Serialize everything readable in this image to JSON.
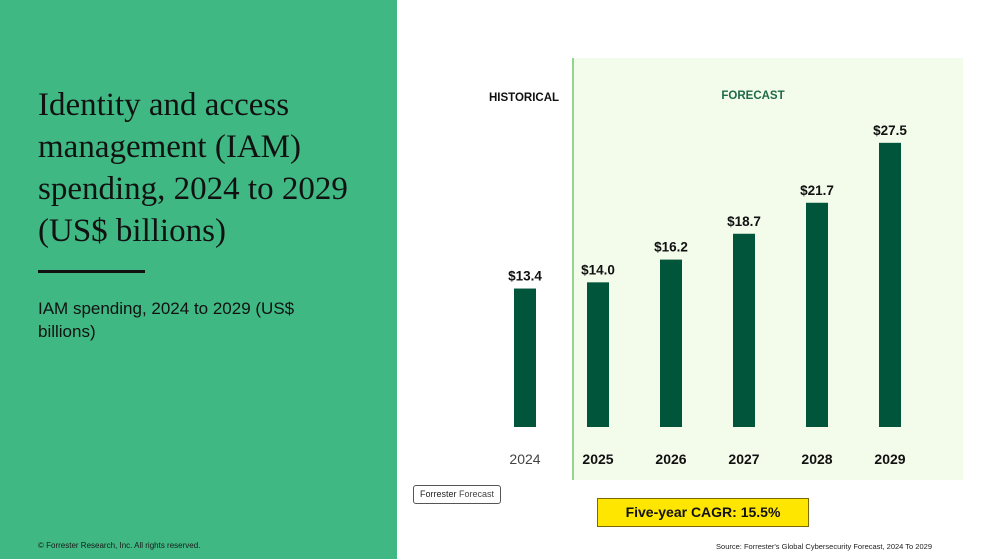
{
  "slide": {
    "title": "Identity and access management (IAM) spending, 2024 to 2029 (US$ billions)",
    "subtitle": "IAM spending, 2024 to 2029 (US$ billions)",
    "copyright": "© Forrester Research, Inc. All rights reserved.",
    "badge_brand": "Forrester",
    "badge_label": "Forecast",
    "cagr_label": "Five-year CAGR: 15.5%",
    "source": "Source: Forrester's Global Cybersecurity Forecast, 2024 To 2029"
  },
  "colors": {
    "panel": "#3fb883",
    "bar": "#00553a",
    "forecast_bg": "#f3fbeb",
    "divider": "#6cc96c",
    "cagr_bg": "#ffe600"
  },
  "chart_data": {
    "type": "bar",
    "categories": [
      "2024",
      "2025",
      "2026",
      "2027",
      "2028",
      "2029"
    ],
    "values": [
      13.4,
      14.0,
      16.2,
      18.7,
      21.7,
      27.5
    ],
    "data_labels": [
      "$13.4",
      "$14.0",
      "$16.2",
      "$18.7",
      "$21.7",
      "$27.5"
    ],
    "sections": {
      "historical": "HISTORICAL",
      "forecast": "FORECAST"
    },
    "historical_count": 1,
    "ylim": [
      0,
      30
    ],
    "grid": false,
    "xlabel": "",
    "ylabel": ""
  }
}
